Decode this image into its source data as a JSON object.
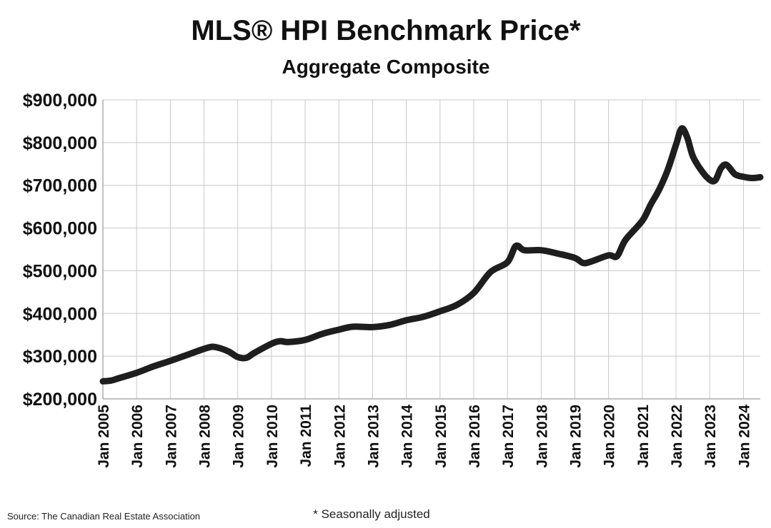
{
  "chart_data": {
    "type": "line",
    "title": "MLS® HPI Benchmark Price*",
    "subtitle": "Aggregate Composite",
    "xlabel": "",
    "ylabel": "",
    "ylim": [
      200000,
      900000
    ],
    "xlim": [
      "2005-01",
      "2024-07"
    ],
    "grid": true,
    "y_ticks": [
      {
        "value": 200000,
        "label": "$200,000"
      },
      {
        "value": 300000,
        "label": "$300,000"
      },
      {
        "value": 400000,
        "label": "$400,000"
      },
      {
        "value": 500000,
        "label": "$500,000"
      },
      {
        "value": 600000,
        "label": "$600,000"
      },
      {
        "value": 700000,
        "label": "$700,000"
      },
      {
        "value": 800000,
        "label": "$800,000"
      },
      {
        "value": 900000,
        "label": "$900,000"
      }
    ],
    "x_ticks": [
      {
        "value": "2005-01",
        "label": "Jan 2005"
      },
      {
        "value": "2006-01",
        "label": "Jan 2006"
      },
      {
        "value": "2007-01",
        "label": "Jan 2007"
      },
      {
        "value": "2008-01",
        "label": "Jan 2008"
      },
      {
        "value": "2009-01",
        "label": "Jan 2009"
      },
      {
        "value": "2010-01",
        "label": "Jan 2010"
      },
      {
        "value": "2011-01",
        "label": "Jan 2011"
      },
      {
        "value": "2012-01",
        "label": "Jan 2012"
      },
      {
        "value": "2013-01",
        "label": "Jan 2013"
      },
      {
        "value": "2014-01",
        "label": "Jan 2014"
      },
      {
        "value": "2015-01",
        "label": "Jan 2015"
      },
      {
        "value": "2016-01",
        "label": "Jan 2016"
      },
      {
        "value": "2017-01",
        "label": "Jan 2017"
      },
      {
        "value": "2018-01",
        "label": "Jan 2018"
      },
      {
        "value": "2019-01",
        "label": "Jan 2019"
      },
      {
        "value": "2020-01",
        "label": "Jan 2020"
      },
      {
        "value": "2021-01",
        "label": "Jan 2021"
      },
      {
        "value": "2022-01",
        "label": "Jan 2022"
      },
      {
        "value": "2023-01",
        "label": "Jan 2023"
      },
      {
        "value": "2024-01",
        "label": "Jan 2024"
      }
    ],
    "series": [
      {
        "color": "#1e1e1e",
        "points": [
          {
            "x": "2005-01",
            "y": 241000
          },
          {
            "x": "2005-04",
            "y": 243000
          },
          {
            "x": "2005-07",
            "y": 249000
          },
          {
            "x": "2006-01",
            "y": 261000
          },
          {
            "x": "2006-07",
            "y": 276000
          },
          {
            "x": "2007-01",
            "y": 289000
          },
          {
            "x": "2007-07",
            "y": 303000
          },
          {
            "x": "2008-01",
            "y": 317000
          },
          {
            "x": "2008-04",
            "y": 322000
          },
          {
            "x": "2008-07",
            "y": 318000
          },
          {
            "x": "2008-10",
            "y": 310000
          },
          {
            "x": "2009-01",
            "y": 298000
          },
          {
            "x": "2009-04",
            "y": 296000
          },
          {
            "x": "2009-07",
            "y": 308000
          },
          {
            "x": "2010-01",
            "y": 329000
          },
          {
            "x": "2010-04",
            "y": 335000
          },
          {
            "x": "2010-07",
            "y": 333000
          },
          {
            "x": "2011-01",
            "y": 338000
          },
          {
            "x": "2011-07",
            "y": 352000
          },
          {
            "x": "2012-01",
            "y": 362000
          },
          {
            "x": "2012-06",
            "y": 369000
          },
          {
            "x": "2013-01",
            "y": 368000
          },
          {
            "x": "2013-07",
            "y": 373000
          },
          {
            "x": "2014-01",
            "y": 384000
          },
          {
            "x": "2014-07",
            "y": 392000
          },
          {
            "x": "2015-01",
            "y": 405000
          },
          {
            "x": "2015-07",
            "y": 420000
          },
          {
            "x": "2016-01",
            "y": 448000
          },
          {
            "x": "2016-07",
            "y": 497000
          },
          {
            "x": "2017-01",
            "y": 520000
          },
          {
            "x": "2017-04",
            "y": 558000
          },
          {
            "x": "2017-07",
            "y": 548000
          },
          {
            "x": "2018-01",
            "y": 548000
          },
          {
            "x": "2018-07",
            "y": 540000
          },
          {
            "x": "2019-01",
            "y": 530000
          },
          {
            "x": "2019-04",
            "y": 518000
          },
          {
            "x": "2019-07",
            "y": 522000
          },
          {
            "x": "2020-01",
            "y": 536000
          },
          {
            "x": "2020-04",
            "y": 534000
          },
          {
            "x": "2020-07",
            "y": 572000
          },
          {
            "x": "2021-01",
            "y": 617000
          },
          {
            "x": "2021-04",
            "y": 655000
          },
          {
            "x": "2021-07",
            "y": 690000
          },
          {
            "x": "2021-10",
            "y": 735000
          },
          {
            "x": "2022-01",
            "y": 795000
          },
          {
            "x": "2022-03",
            "y": 833000
          },
          {
            "x": "2022-05",
            "y": 812000
          },
          {
            "x": "2022-07",
            "y": 768000
          },
          {
            "x": "2022-10",
            "y": 735000
          },
          {
            "x": "2023-01",
            "y": 713000
          },
          {
            "x": "2023-03",
            "y": 712000
          },
          {
            "x": "2023-05",
            "y": 740000
          },
          {
            "x": "2023-07",
            "y": 748000
          },
          {
            "x": "2023-10",
            "y": 726000
          },
          {
            "x": "2024-01",
            "y": 720000
          },
          {
            "x": "2024-04",
            "y": 717000
          },
          {
            "x": "2024-07",
            "y": 719000
          }
        ]
      }
    ],
    "source": "Source: The Canadian Real Estate Association",
    "note": "* Seasonally adjusted"
  }
}
